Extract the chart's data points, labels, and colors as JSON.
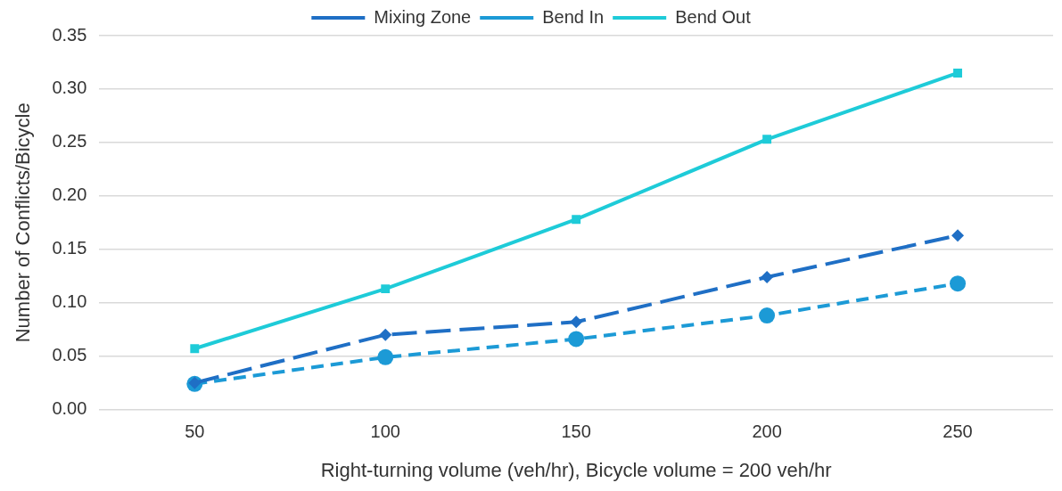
{
  "chart_data": {
    "type": "line",
    "xlabel": "Right-turning volume (veh/hr), Bicycle volume = 200 veh/hr",
    "ylabel": "Number of Conflicts/Bicycle",
    "categories": [
      "50",
      "100",
      "150",
      "200",
      "250"
    ],
    "series": [
      {
        "name": "Mixing Zone",
        "color": "#1f6fc5",
        "marker": "diamond",
        "line_style": "dashed",
        "values": [
          0.025,
          0.07,
          0.082,
          0.124,
          0.163
        ]
      },
      {
        "name": "Bend In",
        "color": "#1c9ad6",
        "marker": "circle",
        "line_style": "dashed",
        "values": [
          0.024,
          0.049,
          0.066,
          0.088,
          0.118
        ]
      },
      {
        "name": "Bend Out",
        "color": "#1ecbd8",
        "marker": "square",
        "line_style": "solid",
        "values": [
          0.057,
          0.113,
          0.178,
          0.253,
          0.315
        ]
      }
    ],
    "ylim": [
      0,
      0.35
    ],
    "yticks": [
      {
        "value": 0,
        "label": "0.00"
      },
      {
        "value": 0.05,
        "label": "0.05"
      },
      {
        "value": 0.1,
        "label": "0.10"
      },
      {
        "value": 0.15,
        "label": "0.15"
      },
      {
        "value": 0.2,
        "label": "0.20"
      },
      {
        "value": 0.25,
        "label": "0.25"
      },
      {
        "value": 0.3,
        "label": "0.30"
      },
      {
        "value": 0.35,
        "label": "0.35"
      }
    ],
    "grid": "y",
    "legend": "top"
  }
}
